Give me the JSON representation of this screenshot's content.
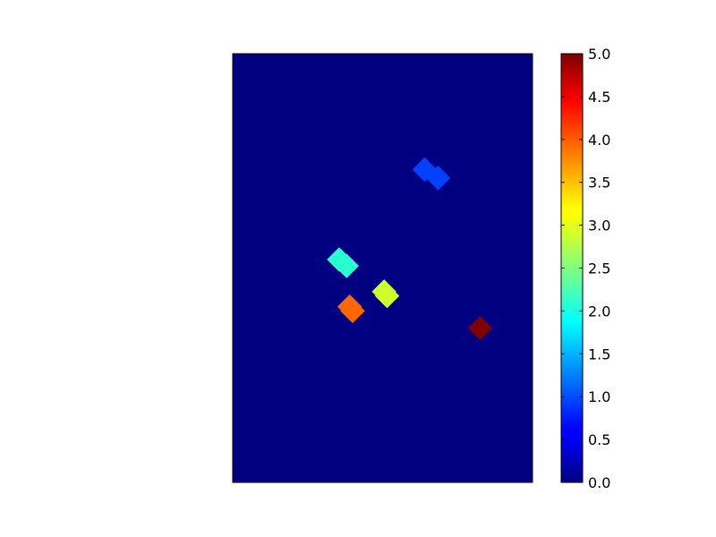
{
  "chart_data": {
    "type": "heatmap",
    "title": "",
    "xlabel": "",
    "ylabel": "",
    "axes_ticks": "none",
    "colormap": "jet",
    "background_value": 0.0,
    "clim": [
      0.0,
      5.0
    ],
    "colorbar": {
      "placement": "right",
      "ticks": [
        "0.0",
        "0.5",
        "1.0",
        "1.5",
        "2.0",
        "2.5",
        "3.0",
        "3.5",
        "4.0",
        "4.5",
        "5.0"
      ]
    },
    "blobs": [
      {
        "label_value": 1,
        "color": "#0040ff",
        "parts": [
          {
            "x": 0.64,
            "y": 0.73
          },
          {
            "x": 0.685,
            "y": 0.71
          }
        ]
      },
      {
        "label_value": 2,
        "color": "#29ffce",
        "parts": [
          {
            "x": 0.355,
            "y": 0.52
          },
          {
            "x": 0.38,
            "y": 0.505
          }
        ]
      },
      {
        "label_value": 3,
        "color": "#ceff29",
        "parts": [
          {
            "x": 0.505,
            "y": 0.445
          },
          {
            "x": 0.515,
            "y": 0.435
          }
        ]
      },
      {
        "label_value": 4,
        "color": "#ff6800",
        "parts": [
          {
            "x": 0.39,
            "y": 0.41
          },
          {
            "x": 0.4,
            "y": 0.4
          }
        ]
      },
      {
        "label_value": 5,
        "color": "#800000",
        "parts": [
          {
            "x": 0.825,
            "y": 0.36
          }
        ]
      }
    ]
  }
}
